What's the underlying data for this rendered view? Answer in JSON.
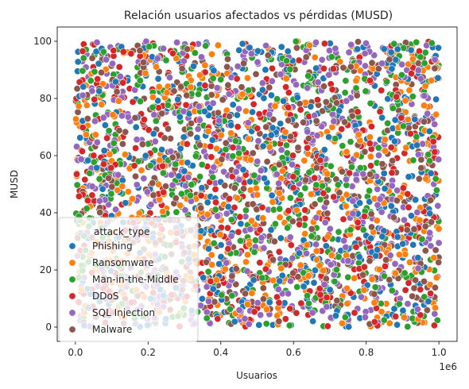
{
  "chart_data": {
    "type": "scatter",
    "title": "Relación usuarios afectados vs pérdidas (MUSD)",
    "xlabel": "Usuarios",
    "ylabel": "MUSD",
    "x_offset_label": "1e6",
    "xlim": [
      -50000,
      1050000
    ],
    "ylim": [
      -5,
      105
    ],
    "x_ticks": [
      0,
      200000,
      400000,
      600000,
      800000,
      1000000
    ],
    "x_tick_labels": [
      "0.0",
      "0.2",
      "0.4",
      "0.6",
      "0.8",
      "1.0"
    ],
    "y_ticks": [
      0,
      20,
      40,
      60,
      80,
      100
    ],
    "y_tick_labels": [
      "0",
      "20",
      "40",
      "60",
      "80",
      "100"
    ],
    "x_range": [
      0,
      1000000
    ],
    "y_range": [
      0,
      100
    ],
    "points_per_series_estimate": 500,
    "grid": false,
    "legend": {
      "title": "attack_type",
      "placement": "lower-left"
    },
    "series": [
      {
        "name": "Phishing",
        "color": "#1f77b4"
      },
      {
        "name": "Ransomware",
        "color": "#ff7f0e"
      },
      {
        "name": "Man-in-the-Middle",
        "color": "#2ca02c"
      },
      {
        "name": "DDoS",
        "color": "#d62728"
      },
      {
        "name": "SQL Injection",
        "color": "#9467bd"
      },
      {
        "name": "Malware",
        "color": "#8c564b"
      }
    ]
  }
}
